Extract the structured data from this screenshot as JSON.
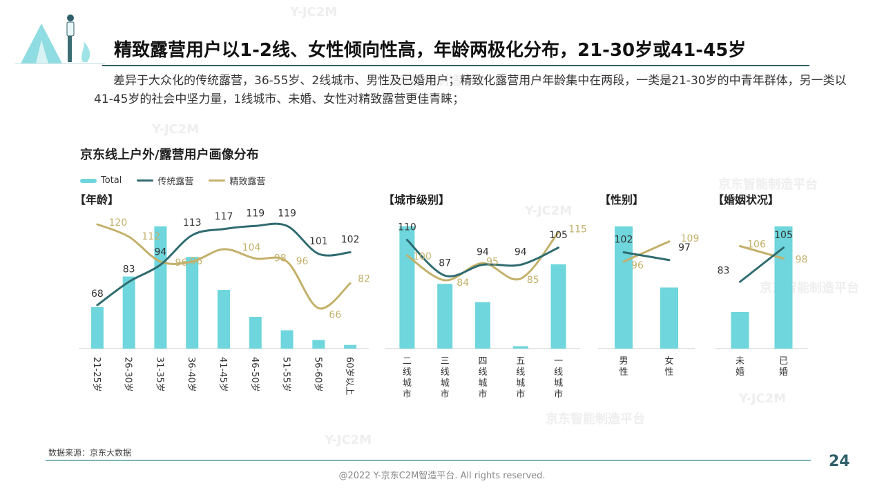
{
  "header": {
    "title": "精致露营用户以1-2线、女性倾向性高，年龄两极化分布，21-30岁或41-45岁",
    "intro": "差异于大众化的传统露营，36-55岁、2线城市、男性及已婚用户；精致化露营用户年龄集中在两段，一类是21-30岁的中青年群体，另一类以41-45岁的社会中坚力量，1线城市、未婚、女性对精致露营更佳青睐；"
  },
  "chart_title": "京东线上户外/露营用户画像分布",
  "watermark": {
    "line1": "Y-JC2M",
    "line2": "京东智能制造平台"
  },
  "colors": {
    "total": "#6ed6dc",
    "traditional": "#2f6b6f",
    "refined": "#c3b06a"
  },
  "chart_data": {
    "type": "bar",
    "legend": [
      "Total",
      "传统露营",
      "精致露营"
    ],
    "panels": [
      {
        "title": "【年龄】",
        "categories": [
          "21-25岁",
          "26-30岁",
          "31-35岁",
          "36-40岁",
          "41-45岁",
          "46-50岁",
          "51-55岁",
          "56-60岁",
          "60岁以上"
        ],
        "series": [
          {
            "name": "Total",
            "values": [
              0.34,
              0.59,
              1.0,
              0.75,
              0.48,
              0.26,
              0.15,
              0.07,
              0.03
            ]
          },
          {
            "name": "传统露营",
            "values": [
              68,
              83,
              94,
              113,
              117,
              119,
              119,
              101,
              102
            ]
          },
          {
            "name": "精致露营",
            "values": [
              120,
              112,
              96,
              96,
              104,
              98,
              96,
              66,
              82
            ]
          }
        ]
      },
      {
        "title": "【城市级别】",
        "categories": [
          "二线城市",
          "三线城市",
          "四线城市",
          "五线城市",
          "一线城市"
        ],
        "series": [
          {
            "name": "Total",
            "values": [
              1.0,
              0.53,
              0.38,
              0.02,
              0.69
            ]
          },
          {
            "name": "传统露营",
            "values": [
              110,
              87,
              94,
              94,
              105
            ]
          },
          {
            "name": "精致露营",
            "values": [
              100,
              84,
              95,
              85,
              115
            ]
          }
        ]
      },
      {
        "title": "【性别】",
        "categories": [
          "男性",
          "女性"
        ],
        "series": [
          {
            "name": "Total",
            "values": [
              1.0,
              0.5
            ]
          },
          {
            "name": "传统露营",
            "values": [
              102,
              97
            ]
          },
          {
            "name": "精致露营",
            "values": [
              96,
              109
            ]
          }
        ]
      },
      {
        "title": "【婚姻状况】",
        "categories": [
          "未婚",
          "已婚"
        ],
        "series": [
          {
            "name": "Total",
            "values": [
              0.3,
              1.0
            ]
          },
          {
            "name": "传统露营",
            "values": [
              83,
              105
            ]
          },
          {
            "name": "精致露营",
            "values": [
              106,
              98
            ]
          }
        ]
      }
    ]
  },
  "footer": {
    "source": "数据来源：京东大数据",
    "page": "24",
    "copyright": "@2022 Y-京东C2M智造平台. All rights reserved."
  }
}
